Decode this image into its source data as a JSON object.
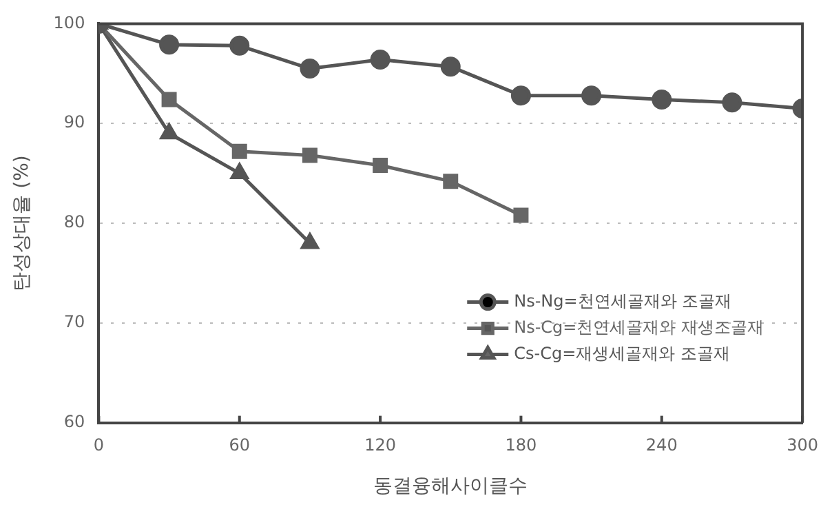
{
  "chart_data": {
    "type": "line",
    "xlabel": "동결융해사이클수",
    "ylabel": "탄성상대율 (%)",
    "xlim": [
      0,
      300
    ],
    "xticks": [
      0,
      60,
      120,
      180,
      240,
      300
    ],
    "ylim": [
      60,
      100
    ],
    "yticks": [
      60,
      70,
      80,
      90,
      100
    ],
    "grid": "y",
    "legend": "bottom right",
    "line_style": "solid",
    "series": [
      {
        "name": "Ns-Ng=천연세골재와 조골재",
        "color": "#555555",
        "marker": "circle",
        "x": [
          0,
          30,
          60,
          90,
          120,
          150,
          180,
          210,
          240,
          270,
          300
        ],
        "values": [
          100,
          97.9,
          97.8,
          95.5,
          96.4,
          95.7,
          92.8,
          92.8,
          92.4,
          92.1,
          91.5
        ]
      },
      {
        "name": "Ns-Cg=천연세골재와 재생조골재",
        "color": "#666666",
        "marker": "square",
        "x": [
          0,
          30,
          60,
          90,
          120,
          150,
          180
        ],
        "values": [
          100,
          92.4,
          87.2,
          86.8,
          85.8,
          84.2,
          80.8
        ]
      },
      {
        "name": "Cs-Cg=재생세골재와 조골재",
        "color": "#555555",
        "marker": "triangle",
        "x": [
          0,
          30,
          60,
          90
        ],
        "values": [
          100,
          89,
          85,
          78
        ]
      }
    ]
  }
}
